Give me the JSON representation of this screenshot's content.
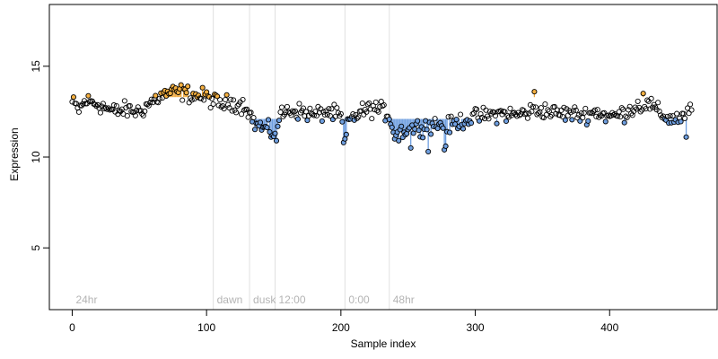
{
  "chart_data": {
    "type": "scatter",
    "xlabel": "Sample index",
    "ylabel": "Expression",
    "xlim": [
      -17,
      480
    ],
    "ylim": [
      1.6,
      18.4
    ],
    "xticks": [
      0,
      100,
      200,
      300,
      400
    ],
    "yticks": [
      5,
      10,
      15
    ],
    "baseline_low": 12.1,
    "baseline_high": 13.3,
    "colors": {
      "point_stroke": "#000000",
      "point_fill_high": "#f5b041",
      "point_fill_low": "#6f9fe0",
      "stem_high": "#f2a93b",
      "stem_low": "#6f9fe0",
      "divider": "#e0e0e0",
      "region_label": "#b4b4b4"
    },
    "regions": [
      {
        "label": "24hr",
        "start": 0,
        "line": null
      },
      {
        "label": "dawn",
        "start": 105,
        "line": 105
      },
      {
        "label": "dusk",
        "start": 132,
        "line": 132
      },
      {
        "label": "12:00",
        "start": 151,
        "line": 151
      },
      {
        "label": "0:00",
        "start": 203,
        "line": 203
      },
      {
        "label": "48hr",
        "start": 236,
        "line": 236
      }
    ],
    "anchors": [
      [
        0,
        13.0
      ],
      [
        5,
        12.6
      ],
      [
        10,
        13.1
      ],
      [
        20,
        12.9
      ],
      [
        30,
        12.5
      ],
      [
        40,
        12.6
      ],
      [
        50,
        12.5
      ],
      [
        60,
        13.1
      ],
      [
        70,
        13.5
      ],
      [
        80,
        13.6
      ],
      [
        90,
        13.4
      ],
      [
        100,
        13.3
      ],
      [
        110,
        12.9
      ],
      [
        120,
        13.0
      ],
      [
        130,
        12.8
      ],
      [
        135,
        11.9
      ],
      [
        142,
        11.6
      ],
      [
        150,
        11.3
      ],
      [
        155,
        12.3
      ],
      [
        162,
        12.6
      ],
      [
        170,
        12.5
      ],
      [
        180,
        12.3
      ],
      [
        190,
        12.5
      ],
      [
        200,
        12.2
      ],
      [
        203,
        10.9
      ],
      [
        206,
        12.0
      ],
      [
        215,
        12.5
      ],
      [
        225,
        12.7
      ],
      [
        235,
        12.4
      ],
      [
        240,
        11.4
      ],
      [
        250,
        11.5
      ],
      [
        260,
        11.7
      ],
      [
        270,
        11.8
      ],
      [
        280,
        11.7
      ],
      [
        290,
        12.0
      ],
      [
        300,
        12.2
      ],
      [
        310,
        12.3
      ],
      [
        320,
        12.4
      ],
      [
        330,
        12.3
      ],
      [
        340,
        12.5
      ],
      [
        350,
        12.6
      ],
      [
        360,
        12.4
      ],
      [
        370,
        12.4
      ],
      [
        380,
        12.3
      ],
      [
        390,
        12.5
      ],
      [
        400,
        12.2
      ],
      [
        410,
        12.4
      ],
      [
        420,
        12.8
      ],
      [
        430,
        12.9
      ],
      [
        437,
        12.4
      ],
      [
        445,
        12.1
      ],
      [
        455,
        12.2
      ],
      [
        462,
        12.6
      ]
    ],
    "outliers": [
      [
        152,
        10.9
      ],
      [
        202,
        10.8
      ],
      [
        203,
        11.0
      ],
      [
        240,
        11.0
      ],
      [
        243,
        10.9
      ],
      [
        252,
        10.5
      ],
      [
        265,
        10.3
      ],
      [
        277,
        10.4
      ],
      [
        278,
        10.6
      ],
      [
        344,
        13.6
      ],
      [
        425,
        13.5
      ],
      [
        457,
        11.1
      ]
    ],
    "n": 462
  }
}
